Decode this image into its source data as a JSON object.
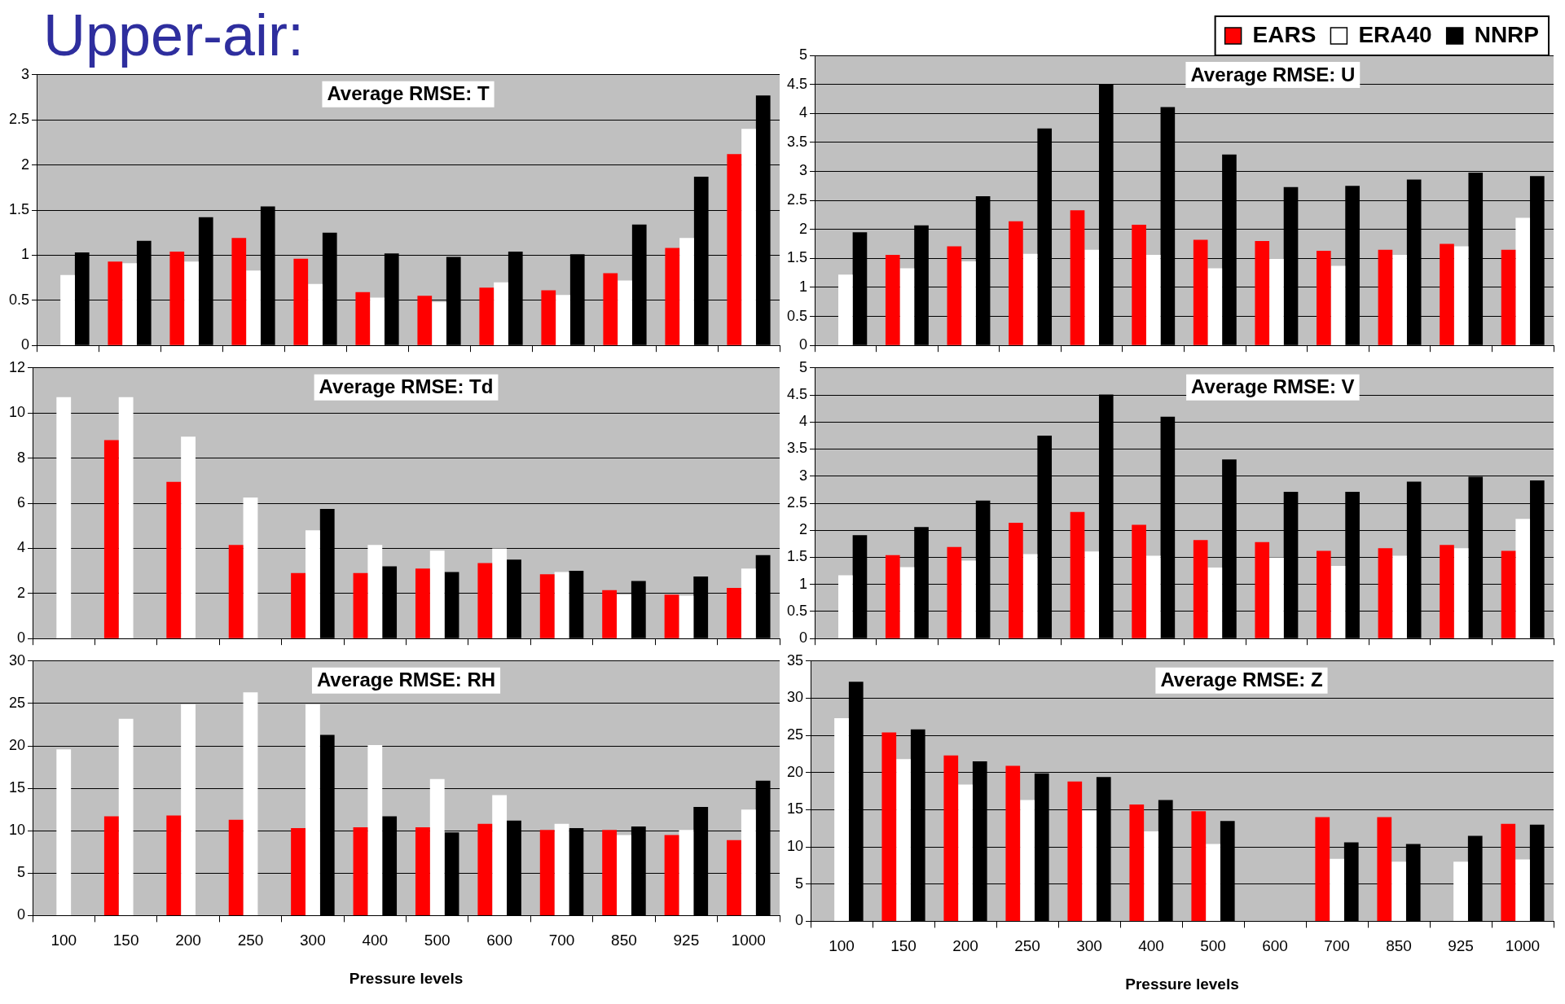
{
  "chart_data": [
    {
      "type": "bar",
      "title": "Average RMSE: T",
      "annotations": [
        "Upper-air:"
      ],
      "categories": [
        "100",
        "150",
        "200",
        "250",
        "300",
        "400",
        "500",
        "600",
        "700",
        "850",
        "925",
        "1000"
      ],
      "ylim": [
        0,
        3
      ],
      "yticks": [
        0,
        0.5,
        1,
        1.5,
        2,
        2.5,
        3
      ],
      "grid": "y",
      "tick_labels": "y",
      "series": [
        {
          "color": "#ff0000",
          "values": [
            null,
            0.93,
            1.04,
            1.19,
            0.96,
            0.59,
            0.55,
            0.64,
            0.61,
            0.8,
            1.08,
            2.12
          ]
        },
        {
          "color": "#ffffff",
          "values": [
            0.78,
            0.91,
            0.93,
            0.83,
            0.68,
            0.53,
            0.48,
            0.7,
            0.56,
            0.72,
            1.19,
            2.4
          ]
        },
        {
          "color": "#000000",
          "values": [
            1.03,
            1.16,
            1.42,
            1.54,
            1.25,
            1.02,
            0.98,
            1.04,
            1.01,
            1.34,
            1.87,
            2.77
          ]
        }
      ]
    },
    {
      "type": "bar",
      "title": "Average RMSE: U",
      "categories": [
        "100",
        "150",
        "200",
        "250",
        "300",
        "400",
        "500",
        "600",
        "700",
        "850",
        "925",
        "1000"
      ],
      "ylim": [
        0,
        5
      ],
      "yticks": [
        0,
        0.5,
        1,
        1.5,
        2,
        2.5,
        3,
        3.5,
        4,
        4.5,
        5
      ],
      "grid": "y",
      "tick_labels": "y",
      "legend": "top right",
      "series": [
        {
          "name": "EARS",
          "color": "#ff0000",
          "values": [
            null,
            1.56,
            1.71,
            2.14,
            2.33,
            2.08,
            1.82,
            1.8,
            1.63,
            1.65,
            1.75,
            1.65
          ]
        },
        {
          "name": "ERA40",
          "color": "#ffffff",
          "values": [
            1.22,
            1.33,
            1.45,
            1.58,
            1.65,
            1.56,
            1.33,
            1.5,
            1.37,
            1.56,
            1.71,
            2.2
          ]
        },
        {
          "name": "NNRP",
          "color": "#000000",
          "values": [
            1.95,
            2.07,
            2.57,
            3.74,
            4.51,
            4.11,
            3.29,
            2.73,
            2.75,
            2.86,
            2.98,
            2.92
          ]
        }
      ]
    },
    {
      "type": "bar",
      "title": "Average RMSE: Td",
      "categories": [
        "100",
        "150",
        "200",
        "250",
        "300",
        "400",
        "500",
        "600",
        "700",
        "850",
        "925",
        "1000"
      ],
      "ylim": [
        0,
        12
      ],
      "yticks": [
        0,
        2,
        4,
        6,
        8,
        10,
        12
      ],
      "grid": "y",
      "tick_labels": "y",
      "series": [
        {
          "color": "#ff0000",
          "values": [
            null,
            8.8,
            6.95,
            4.15,
            2.9,
            2.9,
            3.1,
            3.35,
            2.85,
            2.15,
            1.95,
            2.25
          ]
        },
        {
          "color": "#ffffff",
          "values": [
            10.7,
            10.7,
            8.95,
            6.25,
            4.8,
            4.15,
            3.9,
            4.0,
            2.95,
            1.95,
            1.9,
            3.1
          ]
        },
        {
          "color": "#000000",
          "values": [
            null,
            null,
            null,
            null,
            5.75,
            3.2,
            2.95,
            3.5,
            3.0,
            2.55,
            2.75,
            3.7
          ]
        }
      ]
    },
    {
      "type": "bar",
      "title": "Average RMSE: V",
      "categories": [
        "100",
        "150",
        "200",
        "250",
        "300",
        "400",
        "500",
        "600",
        "700",
        "850",
        "925",
        "1000"
      ],
      "ylim": [
        0,
        5
      ],
      "yticks": [
        0,
        0.5,
        1,
        1.5,
        2,
        2.5,
        3,
        3.5,
        4,
        4.5,
        5
      ],
      "grid": "y",
      "tick_labels": "y",
      "series": [
        {
          "color": "#ff0000",
          "values": [
            null,
            1.54,
            1.69,
            2.14,
            2.34,
            2.1,
            1.82,
            1.78,
            1.62,
            1.67,
            1.73,
            1.62
          ]
        },
        {
          "color": "#ffffff",
          "values": [
            1.17,
            1.32,
            1.44,
            1.56,
            1.61,
            1.53,
            1.31,
            1.5,
            1.34,
            1.53,
            1.67,
            2.21
          ]
        },
        {
          "color": "#000000",
          "values": [
            1.91,
            2.06,
            2.55,
            3.75,
            4.51,
            4.1,
            3.31,
            2.71,
            2.71,
            2.9,
            2.99,
            2.92
          ]
        }
      ]
    },
    {
      "type": "bar",
      "title": "Average RMSE: RH",
      "xlabel": "Pressure levels",
      "categories": [
        "100",
        "150",
        "200",
        "250",
        "300",
        "400",
        "500",
        "600",
        "700",
        "850",
        "925",
        "1000"
      ],
      "ylim": [
        0,
        30
      ],
      "yticks": [
        0,
        5,
        10,
        15,
        20,
        25,
        30
      ],
      "grid": "y",
      "series": [
        {
          "color": "#ff0000",
          "values": [
            null,
            11.7,
            11.8,
            11.3,
            10.3,
            10.4,
            10.4,
            10.8,
            10.1,
            10.1,
            9.5,
            8.9
          ]
        },
        {
          "color": "#ffffff",
          "values": [
            19.6,
            23.2,
            24.9,
            26.3,
            24.9,
            20.1,
            16.1,
            14.2,
            10.8,
            9.5,
            10.1,
            12.5
          ]
        },
        {
          "color": "#000000",
          "values": [
            null,
            null,
            null,
            null,
            21.3,
            11.7,
            9.8,
            11.2,
            10.3,
            10.5,
            12.8,
            15.9
          ]
        }
      ]
    },
    {
      "type": "bar",
      "title": "Average RMSE: Z",
      "xlabel": "Pressure levels",
      "categories": [
        "100",
        "150",
        "200",
        "250",
        "300",
        "400",
        "500",
        "600",
        "700",
        "850",
        "925",
        "1000"
      ],
      "ylim": [
        0,
        35
      ],
      "yticks": [
        0,
        5,
        10,
        15,
        20,
        25,
        30,
        35
      ],
      "grid": "y",
      "series": [
        {
          "color": "#ff0000",
          "values": [
            null,
            25.4,
            22.3,
            20.9,
            18.8,
            15.7,
            14.8,
            null,
            14.0,
            14.0,
            null,
            13.1
          ]
        },
        {
          "color": "#ffffff",
          "values": [
            27.3,
            21.8,
            18.4,
            16.3,
            14.9,
            12.1,
            10.4,
            null,
            8.4,
            8.0,
            8.0,
            8.3
          ]
        },
        {
          "color": "#000000",
          "values": [
            32.2,
            25.8,
            21.5,
            19.9,
            19.4,
            16.3,
            13.5,
            null,
            10.6,
            10.4,
            11.5,
            13.0
          ]
        }
      ]
    }
  ]
}
